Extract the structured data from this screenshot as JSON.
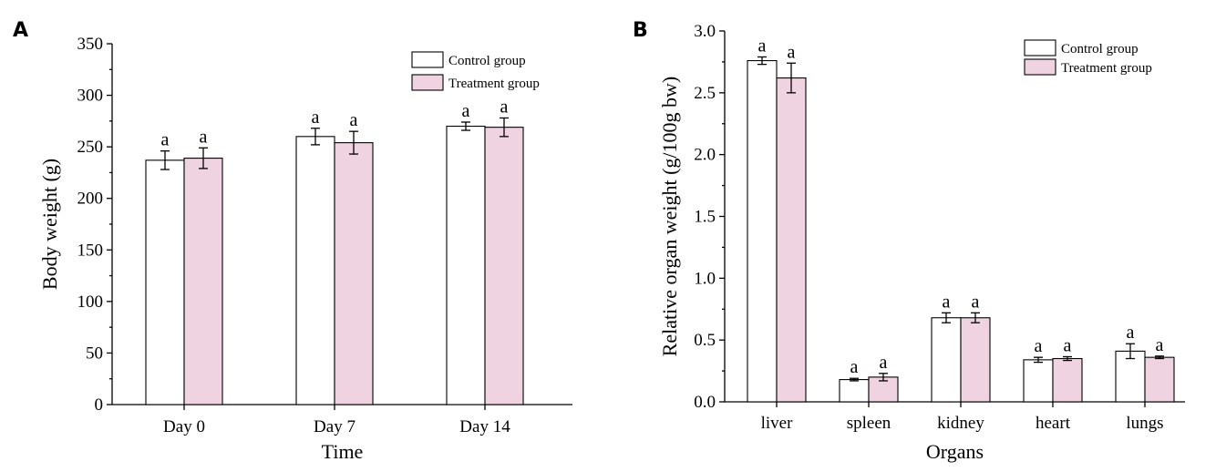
{
  "chart_data": [
    {
      "type": "bar",
      "panel": "A",
      "categories": [
        "Day 0",
        "Day 7",
        "Day 14"
      ],
      "series": [
        {
          "name": "Control group",
          "values": [
            237,
            260,
            270
          ],
          "errors": [
            9,
            8,
            4
          ],
          "labels": [
            "a",
            "a",
            "a"
          ],
          "color": "#ffffff"
        },
        {
          "name": "Treatment group",
          "values": [
            239,
            254,
            269
          ],
          "errors": [
            10,
            11,
            9
          ],
          "labels": [
            "a",
            "a",
            "a"
          ],
          "color": "#efd3e1"
        }
      ],
      "xlabel": "Time",
      "ylabel": "Body weight (g)",
      "ylim": [
        0,
        350
      ],
      "yticks": [
        0,
        50,
        100,
        150,
        200,
        250,
        300,
        350
      ],
      "legend": "top-right",
      "grid": false
    },
    {
      "type": "bar",
      "panel": "B",
      "categories": [
        "liver",
        "spleen",
        "kidney",
        "heart",
        "lungs"
      ],
      "series": [
        {
          "name": "Control group",
          "values": [
            2.76,
            0.18,
            0.68,
            0.34,
            0.41
          ],
          "errors": [
            0.03,
            0.01,
            0.04,
            0.02,
            0.06
          ],
          "labels": [
            "a",
            "a",
            "a",
            "a",
            "a"
          ],
          "color": "#ffffff"
        },
        {
          "name": "Treatment group",
          "values": [
            2.62,
            0.2,
            0.68,
            0.35,
            0.36
          ],
          "errors": [
            0.12,
            0.03,
            0.04,
            0.015,
            0.01
          ],
          "labels": [
            "a",
            "a",
            "a",
            "a",
            "a"
          ],
          "color": "#efd3e1"
        }
      ],
      "xlabel": "Organs",
      "ylabel": "Relative organ weight (g/100g bw)",
      "ylim": [
        0,
        3.0
      ],
      "yticks": [
        "0.0",
        "0.5",
        "1.0",
        "1.5",
        "2.0",
        "2.5",
        "3.0"
      ],
      "legend": "top-right",
      "grid": false
    }
  ]
}
